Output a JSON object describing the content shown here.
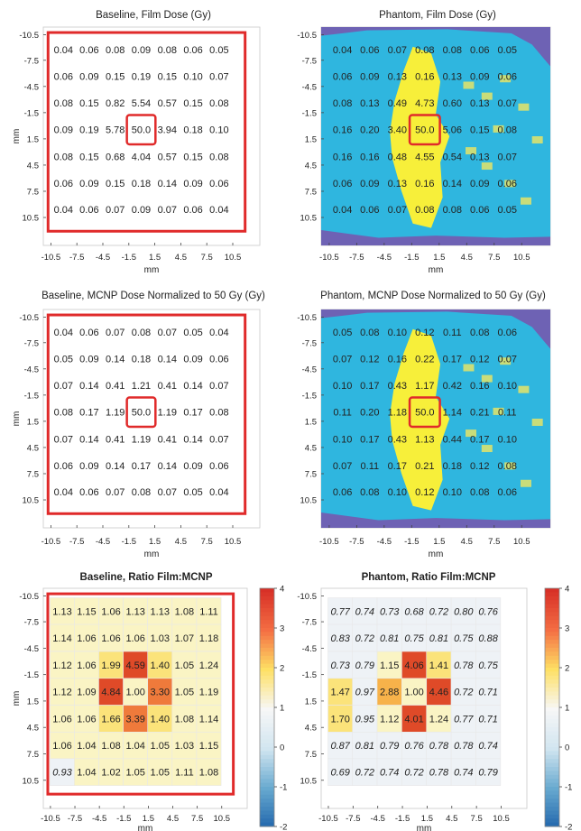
{
  "figure": {
    "colors": {
      "frame": "#e02a2a",
      "phantom_bg": "#2fb6df",
      "phantom_dark": "#6e62b4",
      "phantom_yellow": "#f7ef3a",
      "phantom_green": "#c9dd7a",
      "baseline_fill": "#faf4c4",
      "ratio_low_fill": "#eef2f6"
    },
    "colorbar": {
      "ticks": [
        "4",
        "3",
        "2",
        "1",
        "0",
        "-1",
        "-2"
      ],
      "range": [
        -2,
        4
      ]
    }
  },
  "chart_data": [
    {
      "type": "heatmap",
      "title": "Baseline, Film Dose (Gy)",
      "xlabel": "mm",
      "ylabel": "mm",
      "xticks": [
        "-10.5",
        "-7.5",
        "-4.5",
        "-1.5",
        "1.5",
        "4.5",
        "7.5",
        "10.5"
      ],
      "yticks": [
        "-10.5",
        "-7.5",
        "-4.5",
        "-1.5",
        "1.5",
        "4.5",
        "7.5",
        "10.5"
      ],
      "values": [
        [
          "0.04",
          "0.06",
          "0.08",
          "0.09",
          "0.08",
          "0.06",
          "0.05"
        ],
        [
          "0.06",
          "0.09",
          "0.15",
          "0.19",
          "0.15",
          "0.10",
          "0.07"
        ],
        [
          "0.08",
          "0.15",
          "0.82",
          "5.54",
          "0.57",
          "0.15",
          "0.08"
        ],
        [
          "0.09",
          "0.19",
          "5.78",
          "50.0",
          "3.94",
          "0.18",
          "0.10"
        ],
        [
          "0.08",
          "0.15",
          "0.68",
          "4.04",
          "0.57",
          "0.15",
          "0.08"
        ],
        [
          "0.06",
          "0.09",
          "0.15",
          "0.18",
          "0.14",
          "0.09",
          "0.06"
        ],
        [
          "0.04",
          "0.06",
          "0.07",
          "0.09",
          "0.07",
          "0.06",
          "0.04"
        ]
      ]
    },
    {
      "type": "heatmap",
      "title": "Phantom, Film Dose (Gy)",
      "xlabel": "mm",
      "ylabel": "",
      "xticks": [
        "-10.5",
        "-7.5",
        "-4.5",
        "-1.5",
        "1.5",
        "4.5",
        "7.5",
        "10.5"
      ],
      "yticks": [
        "-10.5",
        "-7.5",
        "-4.5",
        "-1.5",
        "1.5",
        "4.5",
        "7.5",
        "10.5"
      ],
      "values": [
        [
          "0.04",
          "0.06",
          "0.07",
          "0.08",
          "0.08",
          "0.06",
          "0.05"
        ],
        [
          "0.06",
          "0.09",
          "0.13",
          "0.16",
          "0.13",
          "0.09",
          "0.06"
        ],
        [
          "0.08",
          "0.13",
          "0.49",
          "4.73",
          "0.60",
          "0.13",
          "0.07"
        ],
        [
          "0.16",
          "0.20",
          "3.40",
          "50.0",
          "5.06",
          "0.15",
          "0.08"
        ],
        [
          "0.16",
          "0.16",
          "0.48",
          "4.55",
          "0.54",
          "0.13",
          "0.07"
        ],
        [
          "0.06",
          "0.09",
          "0.13",
          "0.16",
          "0.14",
          "0.09",
          "0.06"
        ],
        [
          "0.04",
          "0.06",
          "0.07",
          "0.08",
          "0.08",
          "0.06",
          "0.05"
        ]
      ]
    },
    {
      "type": "heatmap",
      "title": "Baseline, MCNP Dose Normalized to 50 Gy (Gy)",
      "xlabel": "mm",
      "ylabel": "mm",
      "xticks": [
        "-10.5",
        "-7.5",
        "-4.5",
        "-1.5",
        "1.5",
        "4.5",
        "7.5",
        "10.5"
      ],
      "yticks": [
        "-10.5",
        "-7.5",
        "-4.5",
        "-1.5",
        "1.5",
        "4.5",
        "7.5",
        "10.5"
      ],
      "values": [
        [
          "0.04",
          "0.06",
          "0.07",
          "0.08",
          "0.07",
          "0.05",
          "0.04"
        ],
        [
          "0.05",
          "0.09",
          "0.14",
          "0.18",
          "0.14",
          "0.09",
          "0.06"
        ],
        [
          "0.07",
          "0.14",
          "0.41",
          "1.21",
          "0.41",
          "0.14",
          "0.07"
        ],
        [
          "0.08",
          "0.17",
          "1.19",
          "50.0",
          "1.19",
          "0.17",
          "0.08"
        ],
        [
          "0.07",
          "0.14",
          "0.41",
          "1.19",
          "0.41",
          "0.14",
          "0.07"
        ],
        [
          "0.06",
          "0.09",
          "0.14",
          "0.17",
          "0.14",
          "0.09",
          "0.06"
        ],
        [
          "0.04",
          "0.06",
          "0.07",
          "0.08",
          "0.07",
          "0.05",
          "0.04"
        ]
      ]
    },
    {
      "type": "heatmap",
      "title": "Phantom, MCNP Dose Normalized to 50 Gy (Gy)",
      "xlabel": "mm",
      "ylabel": "",
      "xticks": [
        "-10.5",
        "-7.5",
        "-4.5",
        "-1.5",
        "1.5",
        "4.5",
        "7.5",
        "10.5"
      ],
      "yticks": [
        "-10.5",
        "-7.5",
        "-4.5",
        "-1.5",
        "1.5",
        "4.5",
        "7.5",
        "10.5"
      ],
      "values": [
        [
          "0.05",
          "0.08",
          "0.10",
          "0.12",
          "0.11",
          "0.08",
          "0.06"
        ],
        [
          "0.07",
          "0.12",
          "0.16",
          "0.22",
          "0.17",
          "0.12",
          "0.07"
        ],
        [
          "0.10",
          "0.17",
          "0.43",
          "1.17",
          "0.42",
          "0.16",
          "0.10"
        ],
        [
          "0.11",
          "0.20",
          "1.18",
          "50.0",
          "1.14",
          "0.21",
          "0.11"
        ],
        [
          "0.10",
          "0.17",
          "0.43",
          "1.13",
          "0.44",
          "0.17",
          "0.10"
        ],
        [
          "0.07",
          "0.11",
          "0.17",
          "0.21",
          "0.18",
          "0.12",
          "0.08"
        ],
        [
          "0.06",
          "0.08",
          "0.10",
          "0.12",
          "0.10",
          "0.08",
          "0.06"
        ]
      ]
    },
    {
      "type": "heatmap",
      "title": "Baseline, Ratio Film:MCNP",
      "xlabel": "mm",
      "ylabel": "mm",
      "xticks": [
        "-10.5",
        "-7.5",
        "-4.5",
        "-1.5",
        "1.5",
        "4.5",
        "7.5",
        "10.5"
      ],
      "yticks": [
        "-10.5",
        "-7.5",
        "-4.5",
        "-1.5",
        "1.5",
        "4.5",
        "7.5",
        "10.5"
      ],
      "values": [
        [
          "1.13",
          "1.15",
          "1.06",
          "1.13",
          "1.13",
          "1.08",
          "1.11"
        ],
        [
          "1.14",
          "1.06",
          "1.06",
          "1.06",
          "1.03",
          "1.07",
          "1.18"
        ],
        [
          "1.12",
          "1.06",
          "1.99",
          "4.59",
          "1.40",
          "1.05",
          "1.24"
        ],
        [
          "1.12",
          "1.09",
          "4.84",
          "1.00",
          "3.30",
          "1.05",
          "1.19"
        ],
        [
          "1.06",
          "1.06",
          "1.66",
          "3.39",
          "1.40",
          "1.08",
          "1.14"
        ],
        [
          "1.06",
          "1.04",
          "1.08",
          "1.04",
          "1.05",
          "1.03",
          "1.15"
        ],
        [
          "0.93",
          "1.04",
          "1.02",
          "1.05",
          "1.05",
          "1.11",
          "1.08"
        ]
      ]
    },
    {
      "type": "heatmap",
      "title": "Phantom, Ratio Film:MCNP",
      "xlabel": "mm",
      "ylabel": "",
      "xticks": [
        "-10.5",
        "-7.5",
        "-4.5",
        "-1.5",
        "1.5",
        "4.5",
        "7.5",
        "10.5"
      ],
      "yticks": [
        "-10.5",
        "-7.5",
        "-4.5",
        "-1.5",
        "1.5",
        "4.5",
        "7.5",
        "10.5"
      ],
      "values": [
        [
          "0.77",
          "0.74",
          "0.73",
          "0.68",
          "0.72",
          "0.80",
          "0.76"
        ],
        [
          "0.83",
          "0.72",
          "0.81",
          "0.75",
          "0.81",
          "0.75",
          "0.88"
        ],
        [
          "0.73",
          "0.79",
          "1.15",
          "4.06",
          "1.41",
          "0.78",
          "0.75"
        ],
        [
          "1.47",
          "0.97",
          "2.88",
          "1.00",
          "4.46",
          "0.72",
          "0.71"
        ],
        [
          "1.70",
          "0.95",
          "1.12",
          "4.01",
          "1.24",
          "0.77",
          "0.71"
        ],
        [
          "0.87",
          "0.81",
          "0.79",
          "0.76",
          "0.78",
          "0.78",
          "0.74"
        ],
        [
          "0.69",
          "0.72",
          "0.74",
          "0.72",
          "0.78",
          "0.74",
          "0.79"
        ]
      ]
    }
  ]
}
